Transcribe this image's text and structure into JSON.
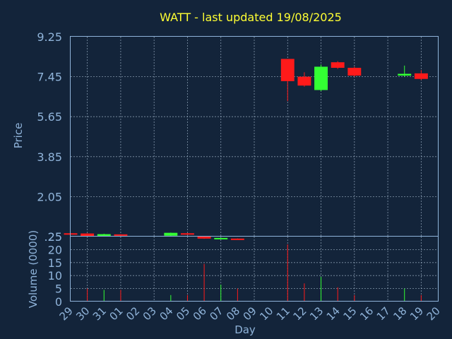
{
  "chart_data": {
    "type": "candlestick",
    "title": "WATT - last updated 19/08/2025",
    "colors": {
      "background": "#13243a",
      "up": "#33ff33",
      "down": "#ff1a1a",
      "title": "#ffff33",
      "axis": "#8fb3d9",
      "grid": "#9fb3c8"
    },
    "price_panel": {
      "ylabel": "Price",
      "yticks": [
        "9.25",
        "7.45",
        "5.65",
        "3.85",
        "2.05",
        ".25"
      ],
      "ylim": [
        0.25,
        9.25
      ],
      "grid": true
    },
    "volume_panel": {
      "ylabel": "Volume (0000)",
      "yticks": [
        "25",
        "20",
        "15",
        "10",
        "5",
        "0"
      ],
      "ylim": [
        0,
        25
      ],
      "grid": true
    },
    "xlabel": "Day",
    "days": [
      "29",
      "30",
      "31",
      "01",
      "02",
      "03",
      "04",
      "05",
      "06",
      "07",
      "08",
      "09",
      "10",
      "11",
      "12",
      "13",
      "14",
      "15",
      "16",
      "17",
      "18",
      "19",
      "20"
    ],
    "candles": [
      {
        "day": "29",
        "open": 0.4,
        "close": 0.35,
        "high": 0.4,
        "low": 0.35
      },
      {
        "day": "30",
        "open": 0.39,
        "close": 0.28,
        "high": 0.4,
        "low": 0.26
      },
      {
        "day": "31",
        "open": 0.28,
        "close": 0.36,
        "high": 0.38,
        "low": 0.27
      },
      {
        "day": "01",
        "open": 0.35,
        "close": 0.29,
        "high": 0.36,
        "low": 0.28
      },
      {
        "day": "04",
        "open": 0.29,
        "close": 0.42,
        "high": 0.43,
        "low": 0.28
      },
      {
        "day": "05",
        "open": 0.4,
        "close": 0.34,
        "high": 0.41,
        "low": 0.33
      },
      {
        "day": "06",
        "open": 0.27,
        "close": 0.16,
        "high": 0.28,
        "low": 0.15
      },
      {
        "day": "07",
        "open": 0.16,
        "close": 0.19,
        "high": 0.2,
        "low": 0.15
      },
      {
        "day": "08",
        "open": 0.16,
        "close": 0.15,
        "high": 0.17,
        "low": 0.14
      },
      {
        "day": "11",
        "open": 8.25,
        "close": 7.25,
        "high": 8.25,
        "low": 6.35
      },
      {
        "day": "12",
        "open": 7.45,
        "close": 7.05,
        "high": 7.65,
        "low": 7.0
      },
      {
        "day": "13",
        "open": 6.85,
        "close": 7.9,
        "high": 8.0,
        "low": 6.8
      },
      {
        "day": "14",
        "open": 8.1,
        "close": 7.85,
        "high": 8.15,
        "low": 7.8
      },
      {
        "day": "15",
        "open": 7.85,
        "close": 7.5,
        "high": 7.9,
        "low": 7.45
      },
      {
        "day": "18",
        "open": 7.5,
        "close": 7.58,
        "high": 7.95,
        "low": 7.45
      },
      {
        "day": "19",
        "open": 7.6,
        "close": 7.35,
        "high": 7.75,
        "low": 7.3
      }
    ],
    "volumes": [
      {
        "day": "29",
        "value": 0.3,
        "dir": "down"
      },
      {
        "day": "30",
        "value": 5.0,
        "dir": "down"
      },
      {
        "day": "31",
        "value": 4.5,
        "dir": "up"
      },
      {
        "day": "01",
        "value": 4.5,
        "dir": "down"
      },
      {
        "day": "04",
        "value": 2.5,
        "dir": "up"
      },
      {
        "day": "05",
        "value": 2.5,
        "dir": "down"
      },
      {
        "day": "06",
        "value": 14.5,
        "dir": "down"
      },
      {
        "day": "07",
        "value": 6.5,
        "dir": "up"
      },
      {
        "day": "08",
        "value": 5.0,
        "dir": "down"
      },
      {
        "day": "11",
        "value": 22.0,
        "dir": "down"
      },
      {
        "day": "12",
        "value": 7.0,
        "dir": "down"
      },
      {
        "day": "13",
        "value": 9.5,
        "dir": "up"
      },
      {
        "day": "14",
        "value": 5.5,
        "dir": "down"
      },
      {
        "day": "15",
        "value": 2.5,
        "dir": "down"
      },
      {
        "day": "18",
        "value": 5.0,
        "dir": "up"
      },
      {
        "day": "19",
        "value": 2.5,
        "dir": "down"
      }
    ]
  }
}
